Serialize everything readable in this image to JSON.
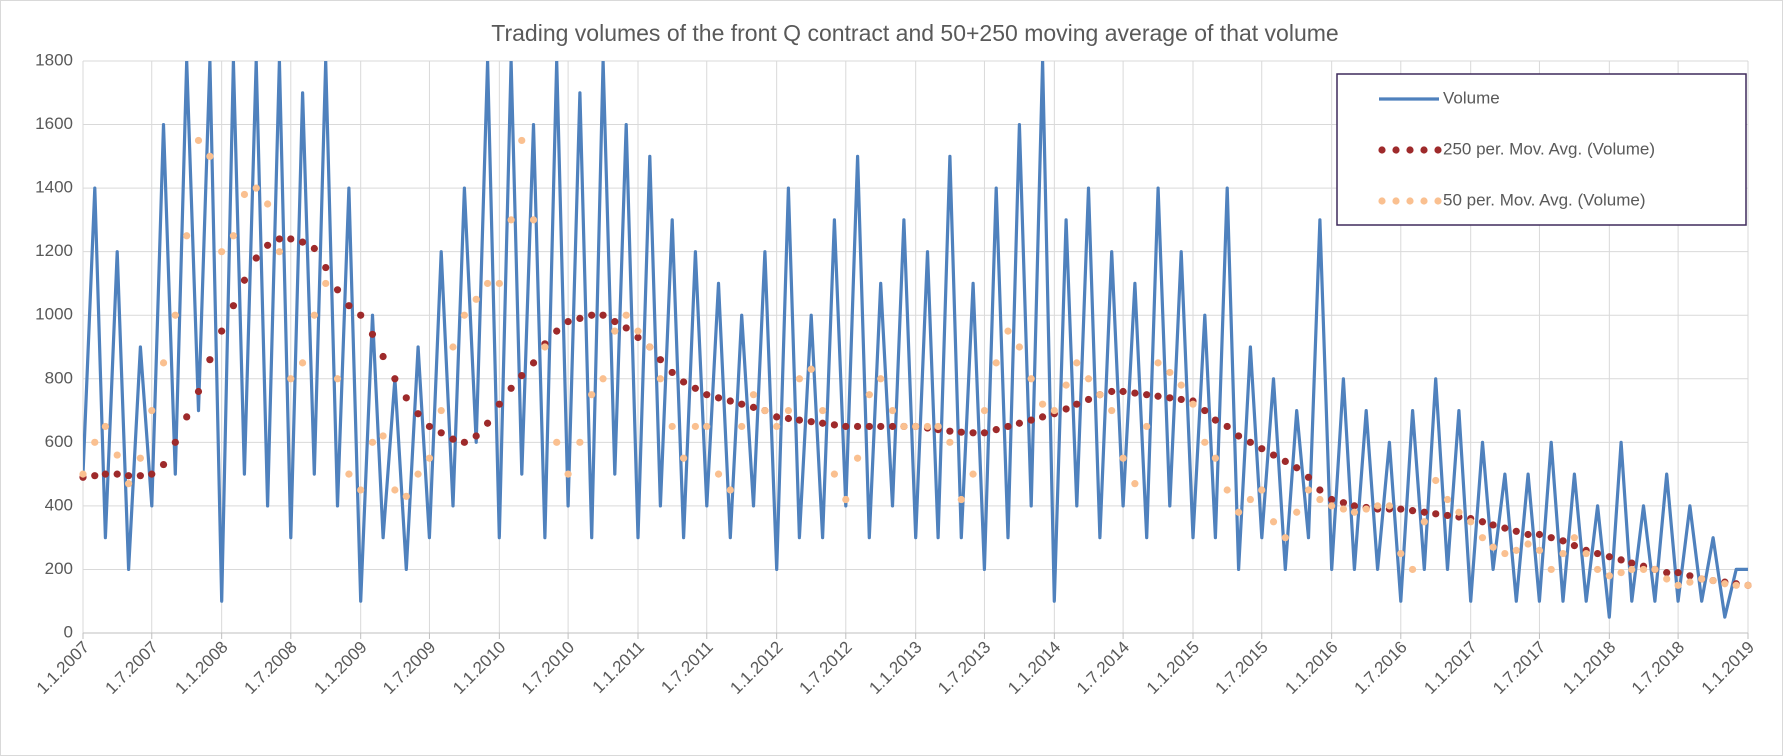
{
  "chart_data": {
    "type": "line",
    "title": "Trading volumes of the front Q contract and 50+250 moving average of that volume",
    "x": [
      "2007-01-01",
      "2007-02-01",
      "2007-03-01",
      "2007-04-01",
      "2007-05-01",
      "2007-06-01",
      "2007-07-01",
      "2007-08-01",
      "2007-09-01",
      "2007-10-01",
      "2007-11-01",
      "2007-12-01",
      "2008-01-01",
      "2008-02-01",
      "2008-03-01",
      "2008-04-01",
      "2008-05-01",
      "2008-06-01",
      "2008-07-01",
      "2008-08-01",
      "2008-09-01",
      "2008-10-01",
      "2008-11-01",
      "2008-12-01",
      "2009-01-01",
      "2009-02-01",
      "2009-03-01",
      "2009-04-01",
      "2009-05-01",
      "2009-06-01",
      "2009-07-01",
      "2009-08-01",
      "2009-09-01",
      "2009-10-01",
      "2009-11-01",
      "2009-12-01",
      "2010-01-01",
      "2010-02-01",
      "2010-03-01",
      "2010-04-01",
      "2010-05-01",
      "2010-06-01",
      "2010-07-01",
      "2010-08-01",
      "2010-09-01",
      "2010-10-01",
      "2010-11-01",
      "2010-12-01",
      "2011-01-01",
      "2011-02-01",
      "2011-03-01",
      "2011-04-01",
      "2011-05-01",
      "2011-06-01",
      "2011-07-01",
      "2011-08-01",
      "2011-09-01",
      "2011-10-01",
      "2011-11-01",
      "2011-12-01",
      "2012-01-01",
      "2012-02-01",
      "2012-03-01",
      "2012-04-01",
      "2012-05-01",
      "2012-06-01",
      "2012-07-01",
      "2012-08-01",
      "2012-09-01",
      "2012-10-01",
      "2012-11-01",
      "2012-12-01",
      "2013-01-01",
      "2013-02-01",
      "2013-03-01",
      "2013-04-01",
      "2013-05-01",
      "2013-06-01",
      "2013-07-01",
      "2013-08-01",
      "2013-09-01",
      "2013-10-01",
      "2013-11-01",
      "2013-12-01",
      "2014-01-01",
      "2014-02-01",
      "2014-03-01",
      "2014-04-01",
      "2014-05-01",
      "2014-06-01",
      "2014-07-01",
      "2014-08-01",
      "2014-09-01",
      "2014-10-01",
      "2014-11-01",
      "2014-12-01",
      "2015-01-01",
      "2015-02-01",
      "2015-03-01",
      "2015-04-01",
      "2015-05-01",
      "2015-06-01",
      "2015-07-01",
      "2015-08-01",
      "2015-09-01",
      "2015-10-01",
      "2015-11-01",
      "2015-12-01",
      "2016-01-01",
      "2016-02-01",
      "2016-03-01",
      "2016-04-01",
      "2016-05-01",
      "2016-06-01",
      "2016-07-01",
      "2016-08-01",
      "2016-09-01",
      "2016-10-01",
      "2016-11-01",
      "2016-12-01",
      "2017-01-01",
      "2017-02-01",
      "2017-03-01",
      "2017-04-01",
      "2017-05-01",
      "2017-06-01",
      "2017-07-01",
      "2017-08-01",
      "2017-09-01",
      "2017-10-01",
      "2017-11-01",
      "2017-12-01",
      "2018-01-01",
      "2018-02-01",
      "2018-03-01",
      "2018-04-01",
      "2018-05-01",
      "2018-06-01",
      "2018-07-01",
      "2018-08-01",
      "2018-09-01",
      "2018-10-01",
      "2018-11-01",
      "2018-12-01",
      "2019-01-01"
    ],
    "series": [
      {
        "name": "Volume",
        "color": "#4f81bd",
        "style": "line",
        "values": [
          500,
          1400,
          300,
          1200,
          200,
          900,
          400,
          1600,
          500,
          1800,
          700,
          1800,
          100,
          1800,
          500,
          1800,
          400,
          1800,
          300,
          1700,
          500,
          1800,
          400,
          1400,
          100,
          1000,
          300,
          800,
          200,
          900,
          300,
          1200,
          400,
          1400,
          600,
          1800,
          300,
          1800,
          500,
          1600,
          300,
          1800,
          400,
          1700,
          300,
          1800,
          500,
          1600,
          300,
          1500,
          400,
          1300,
          300,
          1200,
          400,
          1100,
          300,
          1000,
          400,
          1200,
          200,
          1400,
          300,
          1000,
          300,
          1300,
          400,
          1500,
          300,
          1100,
          400,
          1300,
          300,
          1200,
          300,
          1500,
          300,
          1100,
          200,
          1400,
          300,
          1600,
          400,
          1800,
          100,
          1300,
          400,
          1400,
          300,
          1200,
          400,
          1100,
          300,
          1400,
          400,
          1200,
          300,
          1000,
          300,
          1400,
          200,
          900,
          300,
          800,
          200,
          700,
          300,
          1300,
          200,
          800,
          200,
          700,
          200,
          600,
          100,
          700,
          200,
          800,
          200,
          700,
          100,
          600,
          200,
          500,
          100,
          500,
          100,
          600,
          100,
          500,
          100,
          400,
          50,
          600,
          100,
          400,
          100,
          500,
          100,
          400,
          100,
          300,
          50,
          200,
          200
        ]
      },
      {
        "name": "250 per. Mov. Avg. (Volume)",
        "color": "#9e2a2b",
        "style": "dots",
        "values": [
          490,
          495,
          500,
          500,
          495,
          495,
          500,
          530,
          600,
          680,
          760,
          860,
          950,
          1030,
          1110,
          1180,
          1220,
          1240,
          1240,
          1230,
          1210,
          1150,
          1080,
          1030,
          1000,
          940,
          870,
          800,
          740,
          690,
          650,
          630,
          610,
          600,
          620,
          660,
          720,
          770,
          810,
          850,
          910,
          950,
          980,
          990,
          1000,
          1000,
          980,
          960,
          930,
          900,
          860,
          820,
          790,
          770,
          750,
          740,
          730,
          720,
          710,
          700,
          680,
          675,
          670,
          665,
          660,
          655,
          650,
          650,
          650,
          650,
          650,
          650,
          650,
          645,
          640,
          635,
          632,
          630,
          630,
          640,
          650,
          660,
          670,
          680,
          690,
          705,
          720,
          735,
          750,
          760,
          760,
          755,
          750,
          745,
          740,
          735,
          730,
          700,
          670,
          650,
          620,
          600,
          580,
          560,
          540,
          520,
          490,
          450,
          420,
          410,
          400,
          395,
          390,
          390,
          390,
          385,
          380,
          375,
          370,
          365,
          360,
          350,
          340,
          330,
          320,
          310,
          310,
          300,
          290,
          275,
          260,
          250,
          240,
          230,
          220,
          210,
          200,
          190,
          190,
          180,
          170,
          165,
          160,
          155,
          150
        ]
      },
      {
        "name": "50 per. Mov. Avg. (Volume)",
        "color": "#fac090",
        "style": "dots",
        "values": [
          500,
          600,
          650,
          560,
          470,
          550,
          700,
          850,
          1000,
          1250,
          1550,
          1500,
          1200,
          1250,
          1380,
          1400,
          1350,
          1200,
          800,
          850,
          1000,
          1100,
          800,
          500,
          450,
          600,
          620,
          450,
          430,
          500,
          550,
          700,
          900,
          1000,
          1050,
          1100,
          1100,
          1300,
          1550,
          1300,
          900,
          600,
          500,
          600,
          750,
          800,
          950,
          1000,
          950,
          900,
          800,
          650,
          550,
          650,
          650,
          500,
          450,
          650,
          750,
          700,
          650,
          700,
          800,
          830,
          700,
          500,
          420,
          550,
          750,
          800,
          700,
          650,
          650,
          650,
          650,
          600,
          420,
          500,
          700,
          850,
          950,
          900,
          800,
          720,
          700,
          780,
          850,
          800,
          750,
          700,
          550,
          470,
          650,
          850,
          820,
          780,
          720,
          600,
          550,
          450,
          380,
          420,
          450,
          350,
          300,
          380,
          450,
          420,
          400,
          390,
          380,
          390,
          400,
          400,
          250,
          200,
          350,
          480,
          420,
          380,
          350,
          300,
          270,
          250,
          260,
          280,
          260,
          200,
          250,
          300,
          250,
          200,
          180,
          190,
          200,
          200,
          200,
          170,
          150,
          160,
          170,
          165,
          155,
          150,
          150
        ]
      }
    ],
    "xlim": [
      "2007-01-01",
      "2019-01-01"
    ],
    "xticks": [
      {
        "value": "2007-01-01",
        "label": "1.1.2007"
      },
      {
        "value": "2007-07-01",
        "label": "1.7.2007"
      },
      {
        "value": "2008-01-01",
        "label": "1.1.2008"
      },
      {
        "value": "2008-07-01",
        "label": "1.7.2008"
      },
      {
        "value": "2009-01-01",
        "label": "1.1.2009"
      },
      {
        "value": "2009-07-01",
        "label": "1.7.2009"
      },
      {
        "value": "2010-01-01",
        "label": "1.1.2010"
      },
      {
        "value": "2010-07-01",
        "label": "1.7.2010"
      },
      {
        "value": "2011-01-01",
        "label": "1.1.2011"
      },
      {
        "value": "2011-07-01",
        "label": "1.7.2011"
      },
      {
        "value": "2012-01-01",
        "label": "1.1.2012"
      },
      {
        "value": "2012-07-01",
        "label": "1.7.2012"
      },
      {
        "value": "2013-01-01",
        "label": "1.1.2013"
      },
      {
        "value": "2013-07-01",
        "label": "1.7.2013"
      },
      {
        "value": "2014-01-01",
        "label": "1.1.2014"
      },
      {
        "value": "2014-07-01",
        "label": "1.7.2014"
      },
      {
        "value": "2015-01-01",
        "label": "1.1.2015"
      },
      {
        "value": "2015-07-01",
        "label": "1.7.2015"
      },
      {
        "value": "2016-01-01",
        "label": "1.1.2016"
      },
      {
        "value": "2016-07-01",
        "label": "1.7.2016"
      },
      {
        "value": "2017-01-01",
        "label": "1.1.2017"
      },
      {
        "value": "2017-07-01",
        "label": "1.7.2017"
      },
      {
        "value": "2018-01-01",
        "label": "1.1.2018"
      },
      {
        "value": "2018-07-01",
        "label": "1.7.2018"
      },
      {
        "value": "2019-01-01",
        "label": "1.1.2019"
      }
    ],
    "ylim": [
      0,
      1800
    ],
    "yticks": [
      0,
      200,
      400,
      600,
      800,
      1000,
      1200,
      1400,
      1600,
      1800
    ],
    "grid": true,
    "legend": "upper right"
  }
}
